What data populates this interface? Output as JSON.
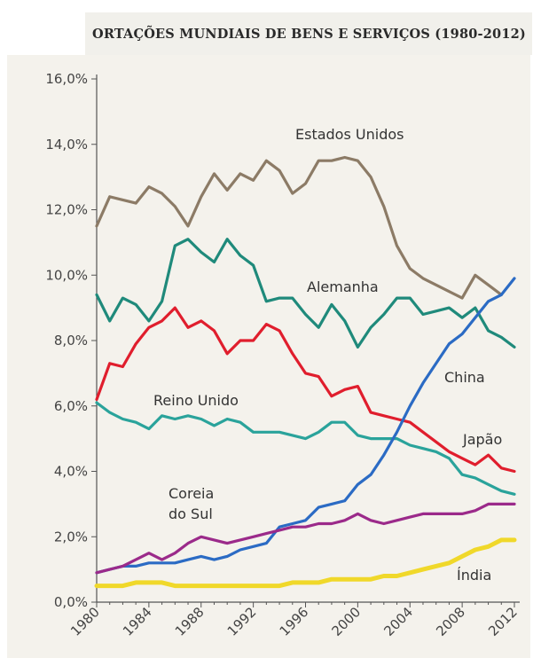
{
  "chart_data": {
    "type": "line",
    "title": "ORTAÇÕES MUNDIAIS DE BENS E SERVIÇOS (1980-2012)",
    "xlabel": "",
    "ylabel": "",
    "xlim": [
      1980,
      2012
    ],
    "ylim": [
      0,
      16
    ],
    "y_ticks": [
      "0,0%",
      "2,0%",
      "4,0%",
      "6,0%",
      "8,0%",
      "10,0%",
      "12,0%",
      "14,0%",
      "16,0%"
    ],
    "y_tick_values": [
      0,
      2,
      4,
      6,
      8,
      10,
      12,
      14,
      16
    ],
    "x_ticks": [
      "1980",
      "1984",
      "1988",
      "1992",
      "1996",
      "2000",
      "2004",
      "2008",
      "2012"
    ],
    "x_tick_values": [
      1980,
      1984,
      1988,
      1992,
      1996,
      2000,
      2004,
      2008,
      2012
    ],
    "grid": false,
    "legend": "inline labels",
    "series": [
      {
        "name": "Estados Unidos",
        "color": "#8c7b66",
        "x": [
          1980,
          1981,
          1982,
          1983,
          1984,
          1985,
          1986,
          1987,
          1988,
          1989,
          1990,
          1991,
          1992,
          1993,
          1994,
          1995,
          1996,
          1997,
          1998,
          1999,
          2000,
          2001,
          2002,
          2003,
          2004,
          2005,
          2006,
          2007,
          2008,
          2009,
          2010,
          2011
        ],
        "values": [
          11.5,
          12.4,
          12.3,
          12.2,
          12.7,
          12.5,
          12.1,
          11.5,
          12.4,
          13.1,
          12.6,
          13.1,
          12.9,
          13.5,
          13.2,
          12.5,
          12.8,
          13.5,
          13.5,
          13.6,
          13.5,
          13.0,
          12.1,
          10.9,
          10.2,
          9.9,
          9.7,
          9.5,
          9.3,
          10.0,
          9.7,
          9.4
        ]
      },
      {
        "name": "Alemanha",
        "color": "#1f8a7b",
        "x": [
          1980,
          1981,
          1982,
          1983,
          1984,
          1985,
          1986,
          1987,
          1988,
          1989,
          1990,
          1991,
          1992,
          1993,
          1994,
          1995,
          1996,
          1997,
          1998,
          1999,
          2000,
          2001,
          2002,
          2003,
          2004,
          2005,
          2006,
          2007,
          2008,
          2009,
          2010,
          2011,
          2012
        ],
        "values": [
          9.4,
          8.6,
          9.3,
          9.1,
          8.6,
          9.2,
          10.9,
          11.1,
          10.7,
          10.4,
          11.1,
          10.6,
          10.3,
          9.2,
          9.3,
          9.3,
          8.8,
          8.4,
          9.1,
          8.6,
          7.8,
          8.4,
          8.8,
          9.3,
          9.3,
          8.8,
          8.9,
          9.0,
          8.7,
          9.0,
          8.3,
          8.1,
          7.8
        ]
      },
      {
        "name": "Japão",
        "color": "#e01e2d",
        "x": [
          1980,
          1981,
          1982,
          1983,
          1984,
          1985,
          1986,
          1987,
          1988,
          1989,
          1990,
          1991,
          1992,
          1993,
          1994,
          1995,
          1996,
          1997,
          1998,
          1999,
          2000,
          2001,
          2002,
          2003,
          2004,
          2005,
          2006,
          2007,
          2008,
          2009,
          2010,
          2011,
          2012
        ],
        "values": [
          6.2,
          7.3,
          7.2,
          7.9,
          8.4,
          8.6,
          9.0,
          8.4,
          8.6,
          8.3,
          7.6,
          8.0,
          8.0,
          8.5,
          8.3,
          7.6,
          7.0,
          6.9,
          6.3,
          6.5,
          6.6,
          5.8,
          5.7,
          5.6,
          5.5,
          5.2,
          4.9,
          4.6,
          4.4,
          4.2,
          4.5,
          4.1,
          4.0
        ]
      },
      {
        "name": "Reino Unido",
        "color": "#2aa39b",
        "x": [
          1980,
          1981,
          1982,
          1983,
          1984,
          1985,
          1986,
          1987,
          1988,
          1989,
          1990,
          1991,
          1992,
          1993,
          1994,
          1995,
          1996,
          1997,
          1998,
          1999,
          2000,
          2001,
          2002,
          2003,
          2004,
          2005,
          2006,
          2007,
          2008,
          2009,
          2010,
          2011,
          2012
        ],
        "values": [
          6.1,
          5.8,
          5.6,
          5.5,
          5.3,
          5.7,
          5.6,
          5.7,
          5.6,
          5.4,
          5.6,
          5.5,
          5.2,
          5.2,
          5.2,
          5.1,
          5.0,
          5.2,
          5.5,
          5.5,
          5.1,
          5.0,
          5.0,
          5.0,
          4.8,
          4.7,
          4.6,
          4.4,
          3.9,
          3.8,
          3.6,
          3.4,
          3.3
        ]
      },
      {
        "name": "China",
        "color": "#2b6bc4",
        "x": [
          1980,
          1981,
          1982,
          1983,
          1984,
          1985,
          1986,
          1987,
          1988,
          1989,
          1990,
          1991,
          1992,
          1993,
          1994,
          1995,
          1996,
          1997,
          1998,
          1999,
          2000,
          2001,
          2002,
          2003,
          2004,
          2005,
          2006,
          2007,
          2008,
          2009,
          2010,
          2011,
          2012
        ],
        "values": [
          0.9,
          1.0,
          1.1,
          1.1,
          1.2,
          1.2,
          1.2,
          1.3,
          1.4,
          1.3,
          1.4,
          1.6,
          1.7,
          1.8,
          2.3,
          2.4,
          2.5,
          2.9,
          3.0,
          3.1,
          3.6,
          3.9,
          4.5,
          5.2,
          6.0,
          6.7,
          7.3,
          7.9,
          8.2,
          8.7,
          9.2,
          9.4,
          9.9
        ]
      },
      {
        "name": "Coreia do Sul",
        "color": "#9b2a8a",
        "x": [
          1980,
          1981,
          1982,
          1983,
          1984,
          1985,
          1986,
          1987,
          1988,
          1989,
          1990,
          1991,
          1992,
          1993,
          1994,
          1995,
          1996,
          1997,
          1998,
          1999,
          2000,
          2001,
          2002,
          2003,
          2004,
          2005,
          2006,
          2007,
          2008,
          2009,
          2010,
          2011,
          2012
        ],
        "values": [
          0.9,
          1.0,
          1.1,
          1.3,
          1.5,
          1.3,
          1.5,
          1.8,
          2.0,
          1.9,
          1.8,
          1.9,
          2.0,
          2.1,
          2.2,
          2.3,
          2.3,
          2.4,
          2.4,
          2.5,
          2.7,
          2.5,
          2.4,
          2.5,
          2.6,
          2.7,
          2.7,
          2.7,
          2.7,
          2.8,
          3.0,
          3.0,
          3.0
        ]
      },
      {
        "name": "Índia",
        "color": "#f0d82a",
        "x": [
          1980,
          1981,
          1982,
          1983,
          1984,
          1985,
          1986,
          1987,
          1988,
          1989,
          1990,
          1991,
          1992,
          1993,
          1994,
          1995,
          1996,
          1997,
          1998,
          1999,
          2000,
          2001,
          2002,
          2003,
          2004,
          2005,
          2006,
          2007,
          2008,
          2009,
          2010,
          2011,
          2012
        ],
        "values": [
          0.5,
          0.5,
          0.5,
          0.6,
          0.6,
          0.6,
          0.5,
          0.5,
          0.5,
          0.5,
          0.5,
          0.5,
          0.5,
          0.5,
          0.5,
          0.6,
          0.6,
          0.6,
          0.7,
          0.7,
          0.7,
          0.7,
          0.8,
          0.8,
          0.9,
          1.0,
          1.1,
          1.2,
          1.4,
          1.6,
          1.7,
          1.9,
          1.9
        ]
      }
    ]
  }
}
